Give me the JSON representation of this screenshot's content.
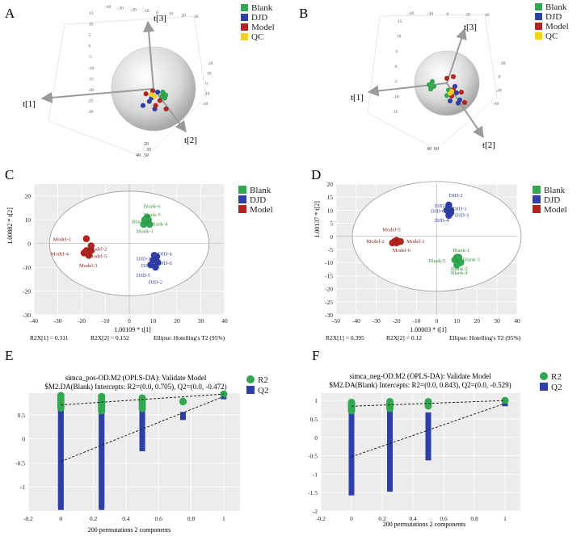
{
  "colors": {
    "blank": "#2fa84f",
    "djd": "#2f3fa8",
    "model": "#b3241f",
    "qc": "#f2d21b",
    "text_blank": "#3d8f43",
    "text_djd": "#2f3b9e",
    "text_model": "#8b1a18",
    "r2": "#2fa84f",
    "q2": "#2f3fa8"
  },
  "panels": {
    "A": "A",
    "B": "B",
    "C": "C",
    "D": "D",
    "E": "E",
    "F": "F"
  },
  "chart_data": [
    {
      "id": "A",
      "type": "scatter",
      "title": "",
      "legend": [
        "Blank",
        "DJD",
        "Model",
        "QC"
      ],
      "axes": [
        "t[1]",
        "t[2]",
        "t[3]"
      ],
      "xticks_bottom": [
        "20",
        "30",
        "40",
        "50"
      ],
      "groups": {
        "Blank": [
          [
            0.2,
            0.18
          ],
          [
            0.24,
            0.12
          ],
          [
            0.27,
            0.22
          ],
          [
            0.29,
            0.15
          ],
          [
            0.22,
            0.08
          ]
        ],
        "DJD": [
          [
            -0.25,
            0.4
          ],
          [
            0.03,
            0.48
          ],
          [
            -0.1,
            0.3
          ],
          [
            0.1,
            0.08
          ],
          [
            -0.05,
            0.22
          ]
        ],
        "Model": [
          [
            0.3,
            0.48
          ],
          [
            0.05,
            0.4
          ],
          [
            -0.18,
            0.12
          ],
          [
            0.15,
            0.28
          ],
          [
            -0.02,
            0.05
          ]
        ],
        "QC": [
          [
            -0.05,
            0.14
          ],
          [
            0.02,
            0.18
          ]
        ]
      }
    },
    {
      "id": "B",
      "type": "scatter",
      "title": "",
      "legend": [
        "Blank",
        "DJD",
        "Model",
        "QC"
      ],
      "axes": [
        "t[1]",
        "t[2]",
        "t[3]"
      ],
      "xticks_bottom": [
        "40",
        "60"
      ],
      "groups": {
        "Blank": [
          [
            -0.55,
            0.05
          ],
          [
            -0.5,
            0.18
          ],
          [
            -0.4,
            0.1
          ],
          [
            0.0,
            0.38
          ],
          [
            0.05,
            0.22
          ],
          [
            -0.45,
            -0.05
          ]
        ],
        "DJD": [
          [
            0.1,
            0.55
          ],
          [
            0.25,
            0.1
          ],
          [
            0.3,
            0.3
          ],
          [
            0.4,
            0.52
          ],
          [
            0.35,
            0.62
          ]
        ],
        "Model": [
          [
            0.0,
            -0.15
          ],
          [
            0.2,
            -0.2
          ],
          [
            0.15,
            0.4
          ],
          [
            0.45,
            0.28
          ],
          [
            0.55,
            0.6
          ],
          [
            0.2,
            0.2
          ]
        ],
        "QC": [
          [
            0.1,
            0.32
          ],
          [
            0.15,
            0.25
          ]
        ]
      }
    },
    {
      "id": "C",
      "type": "scatter",
      "legend": [
        "Blank",
        "DJD",
        "Model"
      ],
      "xlabel": "1.00109 * t[1]",
      "ylabel": "1.00882 * t[2]",
      "xlim": [
        -40,
        40
      ],
      "ylim": [
        -30,
        25
      ],
      "xticks": [
        -40,
        -30,
        -20,
        -10,
        0,
        10,
        20,
        30,
        40
      ],
      "yticks": [
        -30,
        -20,
        -10,
        0,
        10,
        20
      ],
      "ellipse": {
        "rx": 33.5,
        "ry": 22
      },
      "footer": [
        "R2X[1] = 0.311",
        "R2X[2] = 0.152",
        "Ellipse: Hotelling's T2 (95%)"
      ],
      "points": {
        "Blank": [
          [
            7,
            9
          ],
          [
            7.5,
            11
          ],
          [
            6,
            8
          ],
          [
            8,
            10
          ],
          [
            6.5,
            10
          ],
          [
            8.5,
            8
          ]
        ],
        "DJD": [
          [
            10,
            -7
          ],
          [
            11.5,
            -5.5
          ],
          [
            12,
            -8
          ],
          [
            9,
            -9
          ],
          [
            11,
            -10
          ],
          [
            10.5,
            -5
          ]
        ],
        "Model": [
          [
            -18,
            2
          ],
          [
            -16,
            -1
          ],
          [
            -19,
            -4
          ],
          [
            -17,
            -5
          ],
          [
            -18,
            -3
          ],
          [
            -16,
            -3
          ]
        ]
      },
      "labels": {
        "Blank": [
          [
            "Blank-6",
            6,
            15
          ],
          [
            "Blank-5",
            6,
            11.5
          ],
          [
            "Blank-2",
            1,
            8.5
          ],
          [
            "Blank-4",
            9,
            7.5
          ],
          [
            "Blank-1",
            3,
            4.5
          ]
        ],
        "DJD": [
          [
            "DJD-4",
            12,
            -5
          ],
          [
            "DJD-3",
            3,
            -7
          ],
          [
            "DJD-1",
            5,
            -10
          ],
          [
            "DJD-6",
            12,
            -9
          ],
          [
            "DJD-5",
            3,
            -14
          ],
          [
            "DJD-2",
            8,
            -17
          ]
        ],
        "Model": [
          [
            "Model-1",
            -32,
            1
          ],
          [
            "Model-2",
            -17,
            -3
          ],
          [
            "Model-4",
            -33,
            -5
          ],
          [
            "Model-5",
            -17,
            -6
          ],
          [
            "Model-3",
            -21,
            -10
          ]
        ]
      }
    },
    {
      "id": "D",
      "type": "scatter",
      "legend": [
        "Blank",
        "DJD",
        "Model"
      ],
      "xlabel": "1.00003 * t[1]",
      "ylabel": "1.00137 * t[2]",
      "xlim": [
        -50,
        40
      ],
      "ylim": [
        -30,
        20
      ],
      "xticks": [
        -50,
        -40,
        -30,
        -20,
        -10,
        0,
        10,
        20,
        30,
        40
      ],
      "yticks": [
        -30,
        -25,
        -20,
        -15,
        -10,
        -5,
        0,
        5,
        10,
        15,
        20
      ],
      "ellipse": {
        "rx": 42,
        "ry": 21
      },
      "footer": [
        "R2X[1] = 0.395",
        "R2X[2] = 0.12",
        "Ellipse: Hotelling's T2 (95%)"
      ],
      "points": {
        "Blank": [
          [
            10,
            -8
          ],
          [
            11,
            -9
          ],
          [
            9,
            -9
          ],
          [
            12,
            -10
          ],
          [
            10,
            -11
          ],
          [
            11,
            -8
          ]
        ],
        "DJD": [
          [
            6,
            12
          ],
          [
            7,
            10
          ],
          [
            6,
            8
          ],
          [
            7,
            9
          ],
          [
            5,
            10
          ],
          [
            6,
            11
          ]
        ],
        "Model": [
          [
            -21,
            -2
          ],
          [
            -20,
            -1.5
          ],
          [
            -19,
            -2
          ],
          [
            -22,
            -2.5
          ],
          [
            -20,
            -2.5
          ],
          [
            -18,
            -2
          ]
        ]
      },
      "labels": {
        "Blank": [
          [
            "Blank-1",
            8,
            -6
          ],
          [
            "Blank-5",
            -4,
            -10
          ],
          [
            "Blank-3",
            13,
            -9.5
          ],
          [
            "Blank-2",
            7,
            -13
          ],
          [
            "Blank-4",
            7,
            -14.5
          ]
        ],
        "DJD": [
          [
            "DJD-2",
            6,
            15
          ],
          [
            "DJD-5",
            -1,
            11
          ],
          [
            "DJD-1",
            8,
            10
          ],
          [
            "DJD-6",
            -3,
            9
          ],
          [
            "DJD-3",
            9,
            7.5
          ],
          [
            "DJD-4",
            -1,
            5.5
          ]
        ],
        "Model": [
          [
            "Model-5",
            -27,
            2
          ],
          [
            "Model-2",
            -35,
            -2.5
          ],
          [
            "Model-6",
            -22,
            -6
          ],
          [
            "Model-1",
            -15,
            -2.5
          ]
        ]
      }
    },
    {
      "id": "E",
      "type": "scatter",
      "title": "simca_pos-OD.M2 (OPLS-DA): Validate Model",
      "subtitle": "$M2.DA(Blank) Intercepts: R2=(0.0, 0.705), Q2=(0.0, -0.472)",
      "legend": [
        "R2",
        "Q2"
      ],
      "xlabel": "200 permutations 2 components",
      "xlim": [
        -0.2,
        1.1
      ],
      "ylim": [
        -1.5,
        0.95
      ],
      "xticks": [
        -0.2,
        0,
        0.2,
        0.4,
        0.6,
        0.8,
        1
      ],
      "xtick_labels": [
        "-0.2",
        "0",
        "0.2",
        "0.4",
        "0.6",
        "0.8",
        "1"
      ],
      "yticks": [
        -1,
        -0.5,
        0,
        0.5
      ],
      "ytick_labels": [
        "-1",
        "-0.5",
        "0",
        "0.5"
      ],
      "r2_intercept": [
        0.0,
        0.705
      ],
      "q2_intercept": [
        0.0,
        -0.472
      ],
      "r2_original": [
        1,
        0.93
      ],
      "q2_original": [
        1,
        0.88
      ],
      "r2_groups": [
        {
          "x": 0,
          "ymin": 0.64,
          "ymax": 0.9
        },
        {
          "x": 0.25,
          "ymin": 0.58,
          "ymax": 0.88
        },
        {
          "x": 0.5,
          "ymin": 0.63,
          "ymax": 0.85
        },
        {
          "x": 0.75,
          "ymin": 0.77,
          "ymax": 0.78
        }
      ],
      "q2_groups": [
        {
          "x": 0,
          "ymin": -1.42,
          "ymax": 0.7
        },
        {
          "x": 0.25,
          "ymin": -1.42,
          "ymax": 0.7
        },
        {
          "x": 0.5,
          "ymin": -0.2,
          "ymax": 0.6
        },
        {
          "x": 0.75,
          "ymin": 0.45,
          "ymax": 0.5
        }
      ]
    },
    {
      "id": "F",
      "type": "scatter",
      "title": "simca_neg-OD.M2 (OPLS-DA): Validate Model",
      "subtitle": "$M2.DA(Blank) Intercepts: R2=(0.0, 0.843), Q2=(0.0, -0.529)",
      "legend": [
        "R2",
        "Q2"
      ],
      "xlabel": "200 permutations 2 components",
      "xlim": [
        -0.2,
        1.1
      ],
      "ylim": [
        -2,
        1.2
      ],
      "xticks": [
        -0.2,
        0,
        0.2,
        0.4,
        0.6,
        0.8,
        1
      ],
      "xtick_labels": [
        "-0.2",
        "0",
        "0.2",
        "0.4",
        "0.6",
        "0.8",
        "1"
      ],
      "yticks": [
        -2,
        -1.5,
        -1,
        -0.5,
        0,
        0.5,
        1
      ],
      "ytick_labels": [
        "-2",
        "-1.5",
        "-1",
        "-0.5",
        "0",
        "0.5",
        "1"
      ],
      "r2_intercept": [
        0.0,
        0.843
      ],
      "q2_intercept": [
        0.0,
        -0.529
      ],
      "r2_original": [
        1,
        1.0
      ],
      "q2_original": [
        1,
        0.92
      ],
      "r2_groups": [
        {
          "x": 0,
          "ymin": 0.72,
          "ymax": 0.95
        },
        {
          "x": 0.25,
          "ymin": 0.78,
          "ymax": 0.97
        },
        {
          "x": 0.5,
          "ymin": 0.85,
          "ymax": 0.97
        }
      ],
      "q2_groups": [
        {
          "x": 0,
          "ymin": -1.5,
          "ymax": 0.8
        },
        {
          "x": 0.25,
          "ymin": -1.4,
          "ymax": 0.7
        },
        {
          "x": 0.5,
          "ymin": -0.55,
          "ymax": 0.6
        }
      ]
    }
  ]
}
